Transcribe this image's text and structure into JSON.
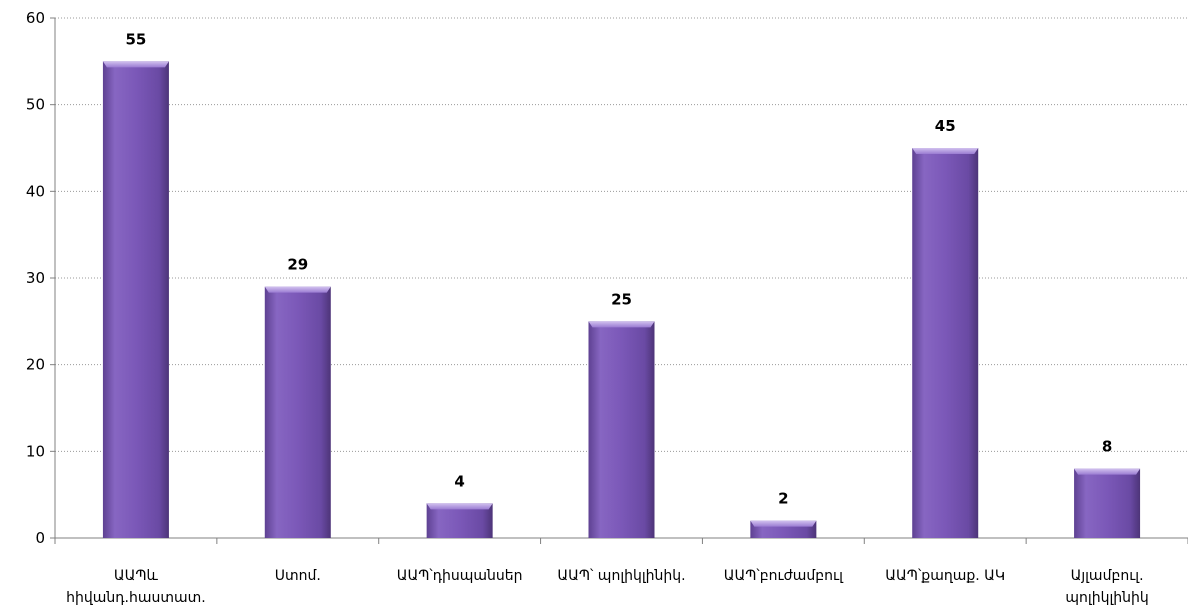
{
  "chart_data": {
    "type": "bar",
    "categories": [
      [
        "ԱԱՊև",
        "հիվանդ.հաստատ."
      ],
      [
        "Ստոմ."
      ],
      [
        "ԱԱՊ՝դիսպանսեր"
      ],
      [
        "ԱԱՊ՝ պոլիկլինիկ."
      ],
      [
        "ԱԱՊ՝բուժամբուլ"
      ],
      [
        "ԱԱՊ՝քաղաք. ԱԿ"
      ],
      [
        "Այլամբուլ.",
        "պոլիկլինիկ"
      ]
    ],
    "values": [
      55,
      29,
      4,
      25,
      2,
      45,
      8
    ],
    "data_labels": [
      "55",
      "29",
      "4",
      "25",
      "2",
      "45",
      "8"
    ],
    "ylim": [
      0,
      60
    ],
    "yticks": [
      0,
      10,
      20,
      30,
      40,
      50,
      60
    ],
    "ytick_labels": [
      "0",
      "10",
      "20",
      "30",
      "40",
      "50",
      "60"
    ],
    "grid": "horizontal dotted",
    "legend": "none",
    "title": "",
    "xlabel": "",
    "ylabel": "",
    "colors": {
      "bar_light": "#9b79d0",
      "bar_mid": "#7f5bb8",
      "bar_dark": "#5b3f8e",
      "bar_top": "#b49be0",
      "axis": "#808080",
      "grid": "#9a9a9a"
    }
  }
}
